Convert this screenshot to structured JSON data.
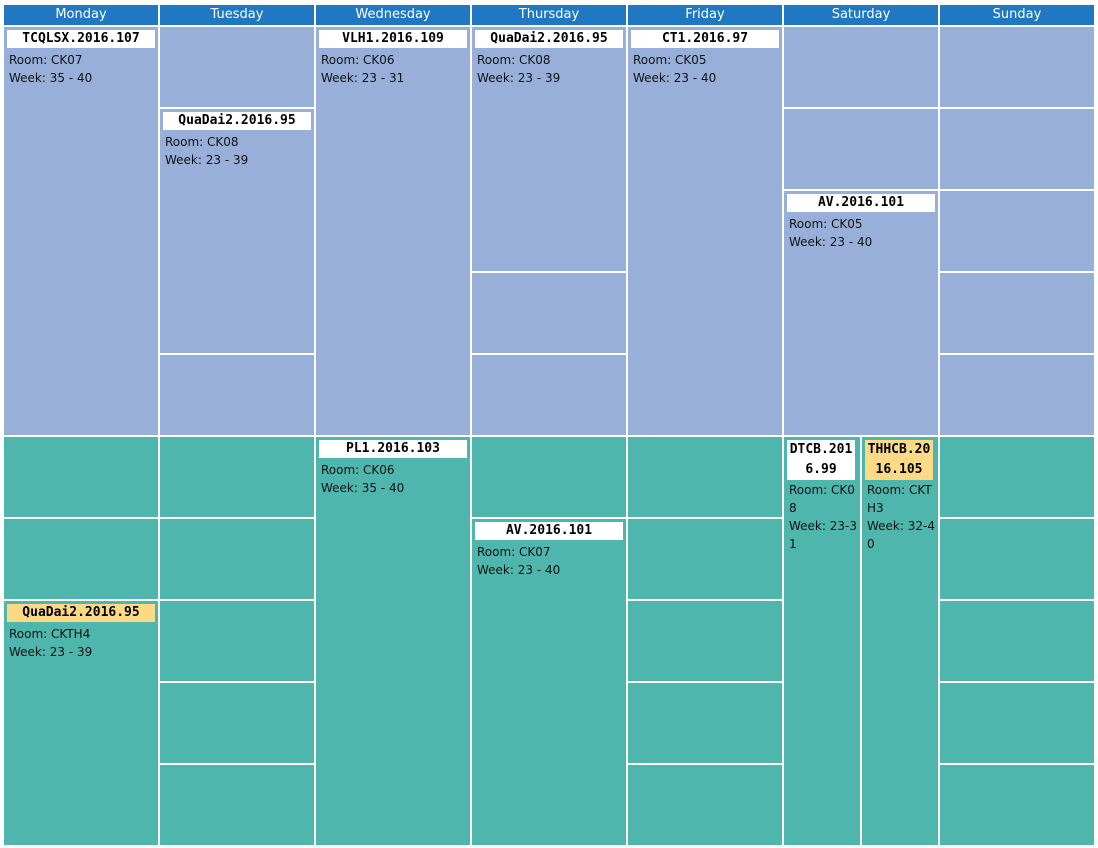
{
  "days": [
    "Monday",
    "Tuesday",
    "Wednesday",
    "Thursday",
    "Friday",
    "Saturday",
    "Sunday"
  ],
  "colors": {
    "header": "#1f78c1",
    "morning": "#98b0d9",
    "afternoon": "#4eb6ad",
    "highlight": "#fbd985"
  },
  "morning_events": [
    {
      "day": "Monday",
      "title": "TCQLSX.2016.107",
      "room": "Room: CK07",
      "week": "Week: 35 - 40"
    },
    {
      "day": "Tuesday",
      "title": "QuaDai2.2016.95",
      "room": "Room: CK08",
      "week": "Week: 23 - 39"
    },
    {
      "day": "Wednesday",
      "title": "VLH1.2016.109",
      "room": "Room: CK06",
      "week": "Week: 23 - 31"
    },
    {
      "day": "Thursday",
      "title": "QuaDai2.2016.95",
      "room": "Room: CK08",
      "week": "Week: 23 - 39"
    },
    {
      "day": "Friday",
      "title": "CT1.2016.97",
      "room": "Room: CK05",
      "week": "Week: 23 - 40"
    },
    {
      "day": "Saturday",
      "title": "AV.2016.101",
      "room": "Room: CK05",
      "week": "Week: 23 - 40"
    }
  ],
  "afternoon_events": [
    {
      "day": "Monday",
      "title": "QuaDai2.2016.95",
      "room": "Room: CKTH4",
      "week": "Week: 23 - 39",
      "highlight": true
    },
    {
      "day": "Wednesday",
      "title": "PL1.2016.103",
      "room": "Room: CK06",
      "week": "Week: 35 - 40"
    },
    {
      "day": "Thursday",
      "title": "AV.2016.101",
      "room": "Room: CK07",
      "week": "Week: 23 - 40"
    },
    {
      "day": "Saturday",
      "title": "DTCB.2016.99",
      "room": "Room: CK08",
      "week": "Week: 23-31"
    },
    {
      "day": "Saturday",
      "title": "THHCB.2016.105",
      "room": "Room: CKTH3",
      "week": "Week: 32-40",
      "highlight": true
    }
  ]
}
